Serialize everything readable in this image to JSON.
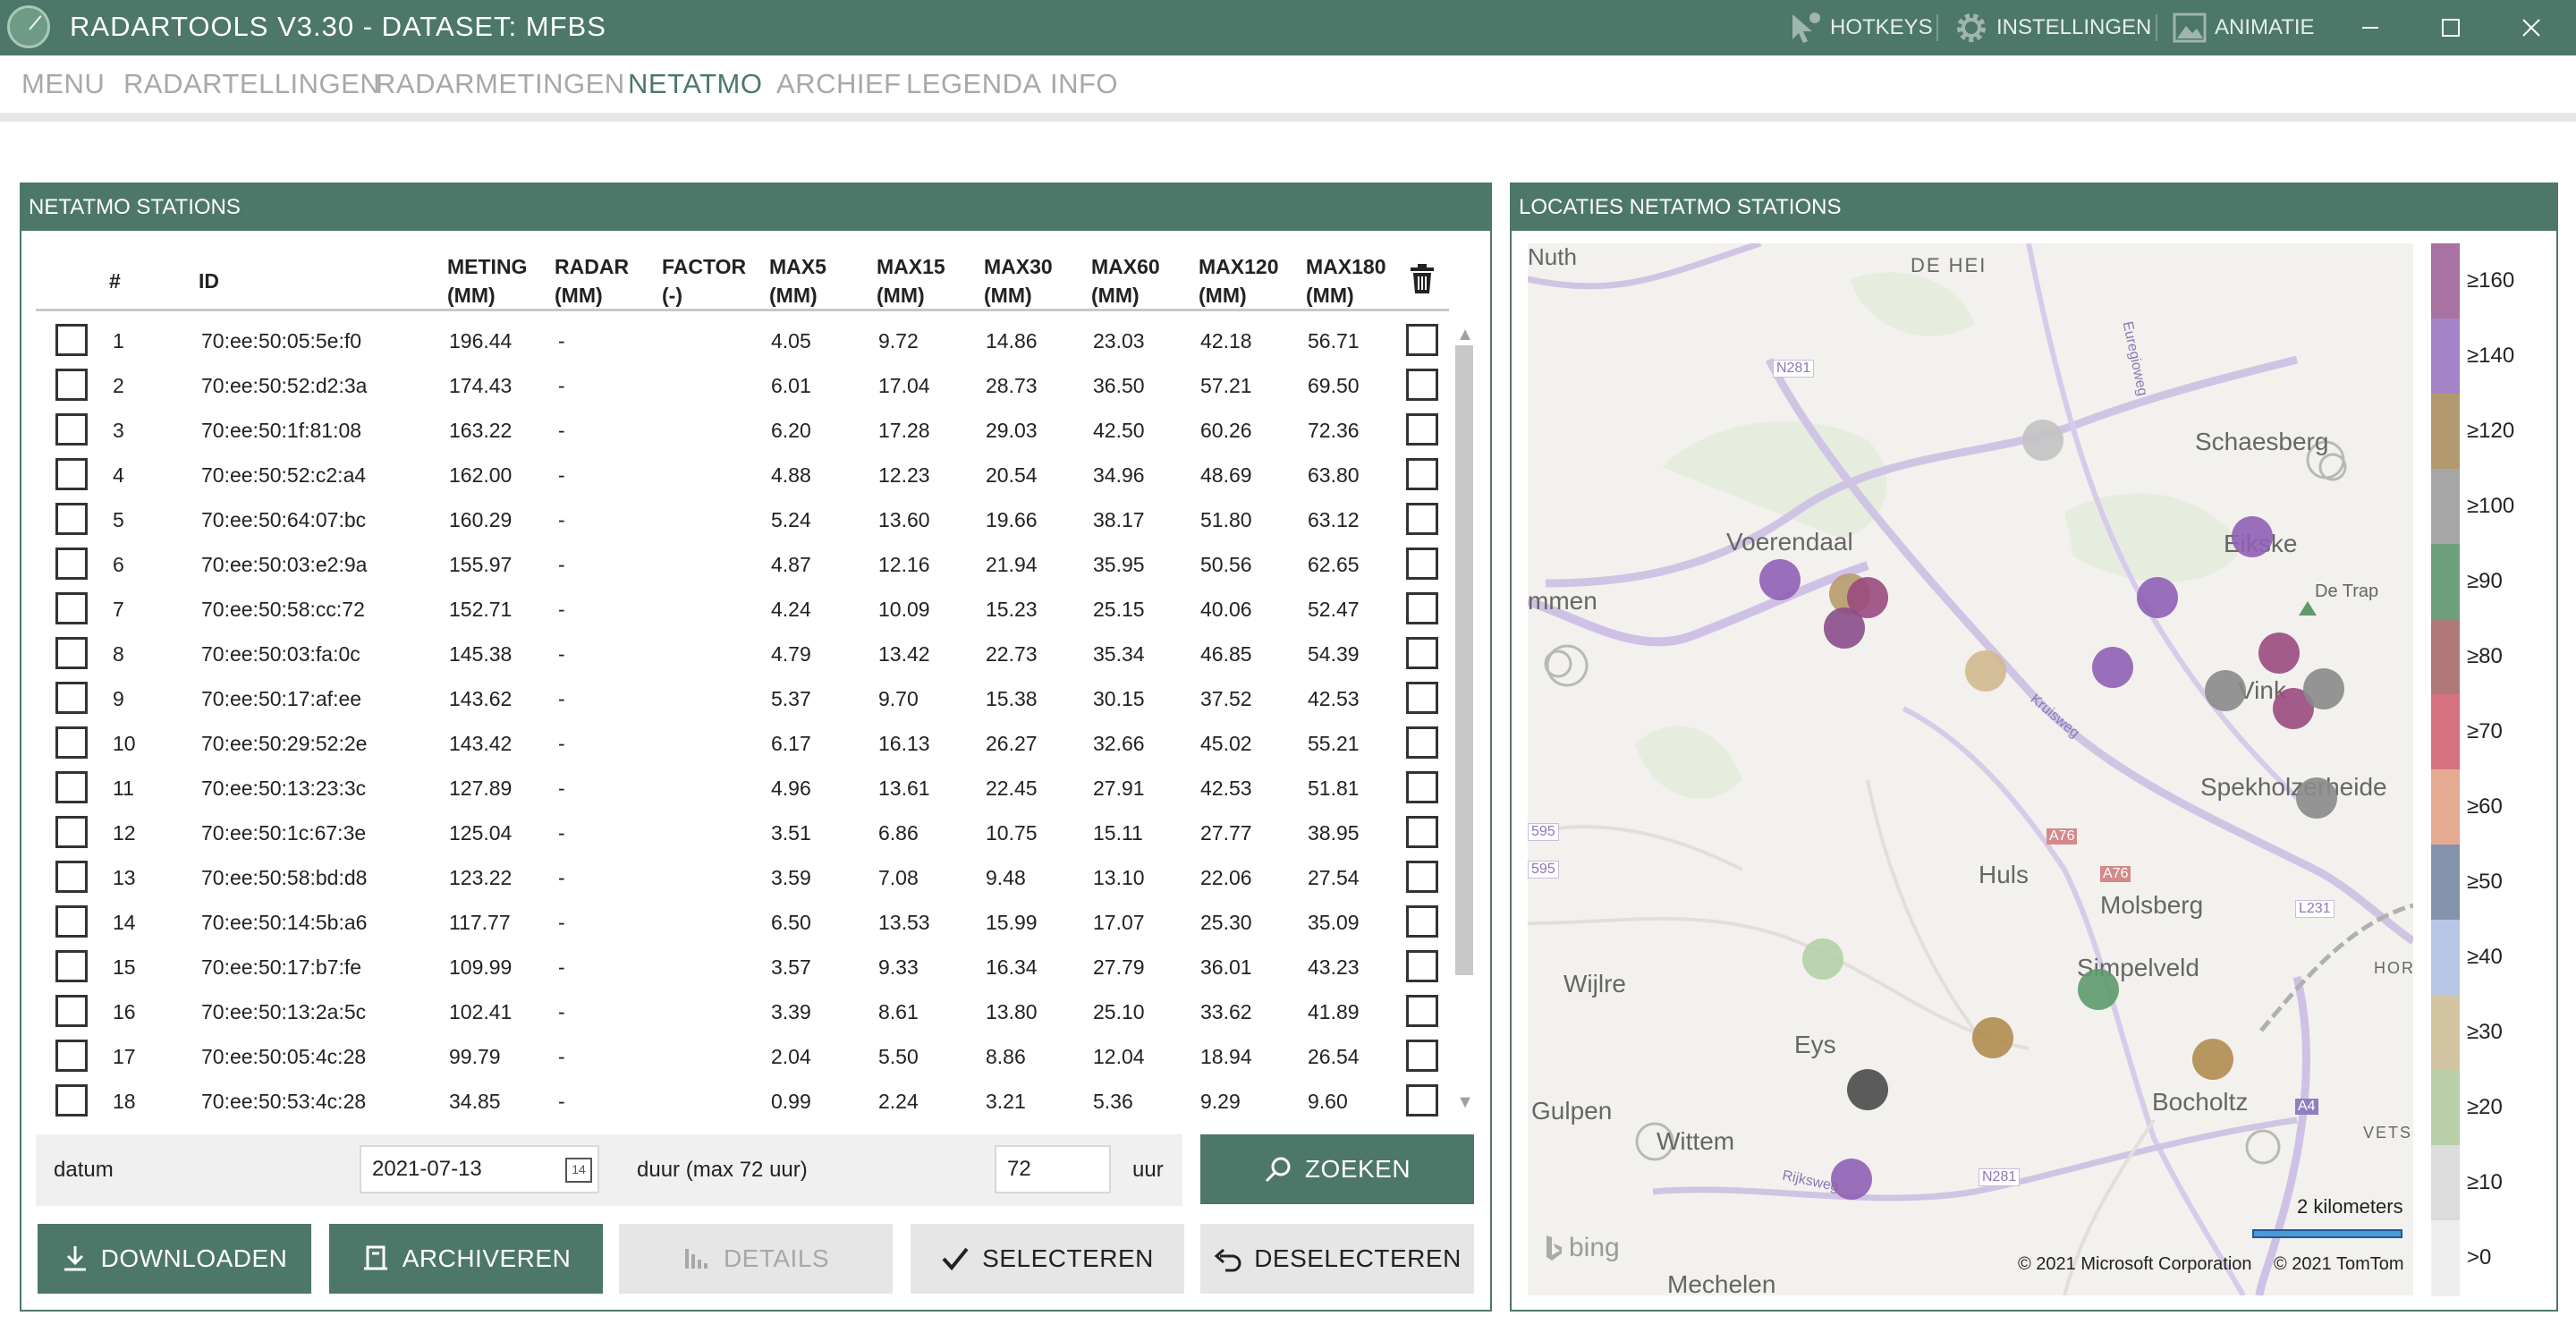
{
  "app": {
    "title": "RADARTOOLS V3.30 - DATASET: MFBS"
  },
  "titlebar": {
    "hotkeys": "HOTKEYS",
    "settings": "INSTELLINGEN",
    "animation": "ANIMATIE"
  },
  "menu": [
    "MENU",
    "RADARTELLINGEN",
    "RADARMETINGEN",
    "NETATMO",
    "ARCHIEF",
    "LEGENDA",
    "INFO"
  ],
  "menu_active": "NETATMO",
  "stations_panel": {
    "title": "NETATMO STATIONS",
    "columns": [
      "#",
      "ID",
      "METING\n(MM)",
      "RADAR\n(MM)",
      "FACTOR\n(-)",
      "MAX5\n(MM)",
      "MAX15\n(MM)",
      "MAX30\n(MM)",
      "MAX60\n(MM)",
      "MAX120\n(MM)",
      "MAX180\n(MM)"
    ],
    "rows": [
      [
        "1",
        "70:ee:50:05:5e:f0",
        "196.44",
        "-",
        "",
        "4.05",
        "9.72",
        "14.86",
        "23.03",
        "42.18",
        "56.71"
      ],
      [
        "2",
        "70:ee:50:52:d2:3a",
        "174.43",
        "-",
        "",
        "6.01",
        "17.04",
        "28.73",
        "36.50",
        "57.21",
        "69.50"
      ],
      [
        "3",
        "70:ee:50:1f:81:08",
        "163.22",
        "-",
        "",
        "6.20",
        "17.28",
        "29.03",
        "42.50",
        "60.26",
        "72.36"
      ],
      [
        "4",
        "70:ee:50:52:c2:a4",
        "162.00",
        "-",
        "",
        "4.88",
        "12.23",
        "20.54",
        "34.96",
        "48.69",
        "63.80"
      ],
      [
        "5",
        "70:ee:50:64:07:bc",
        "160.29",
        "-",
        "",
        "5.24",
        "13.60",
        "19.66",
        "38.17",
        "51.80",
        "63.12"
      ],
      [
        "6",
        "70:ee:50:03:e2:9a",
        "155.97",
        "-",
        "",
        "4.87",
        "12.16",
        "21.94",
        "35.95",
        "50.56",
        "62.65"
      ],
      [
        "7",
        "70:ee:50:58:cc:72",
        "152.71",
        "-",
        "",
        "4.24",
        "10.09",
        "15.23",
        "25.15",
        "40.06",
        "52.47"
      ],
      [
        "8",
        "70:ee:50:03:fa:0c",
        "145.38",
        "-",
        "",
        "4.79",
        "13.42",
        "22.73",
        "35.34",
        "46.85",
        "54.39"
      ],
      [
        "9",
        "70:ee:50:17:af:ee",
        "143.62",
        "-",
        "",
        "5.37",
        "9.70",
        "15.38",
        "30.15",
        "37.52",
        "42.53"
      ],
      [
        "10",
        "70:ee:50:29:52:2e",
        "143.42",
        "-",
        "",
        "6.17",
        "16.13",
        "26.27",
        "32.66",
        "45.02",
        "55.21"
      ],
      [
        "11",
        "70:ee:50:13:23:3c",
        "127.89",
        "-",
        "",
        "4.96",
        "13.61",
        "22.45",
        "27.91",
        "42.53",
        "51.81"
      ],
      [
        "12",
        "70:ee:50:1c:67:3e",
        "125.04",
        "-",
        "",
        "3.51",
        "6.86",
        "10.75",
        "15.11",
        "27.77",
        "38.95"
      ],
      [
        "13",
        "70:ee:50:58:bd:d8",
        "123.22",
        "-",
        "",
        "3.59",
        "7.08",
        "9.48",
        "13.10",
        "22.06",
        "27.54"
      ],
      [
        "14",
        "70:ee:50:14:5b:a6",
        "117.77",
        "-",
        "",
        "6.50",
        "13.53",
        "15.99",
        "17.07",
        "25.30",
        "35.09"
      ],
      [
        "15",
        "70:ee:50:17:b7:fe",
        "109.99",
        "-",
        "",
        "3.57",
        "9.33",
        "16.34",
        "27.79",
        "36.01",
        "43.23"
      ],
      [
        "16",
        "70:ee:50:13:2a:5c",
        "102.41",
        "-",
        "",
        "3.39",
        "8.61",
        "13.80",
        "25.10",
        "33.62",
        "41.89"
      ],
      [
        "17",
        "70:ee:50:05:4c:28",
        "99.79",
        "-",
        "",
        "2.04",
        "5.50",
        "8.86",
        "12.04",
        "18.94",
        "26.54"
      ],
      [
        "18",
        "70:ee:50:53:4c:28",
        "34.85",
        "-",
        "",
        "0.99",
        "2.24",
        "3.21",
        "5.36",
        "9.29",
        "9.60"
      ]
    ]
  },
  "controls": {
    "date_label": "datum",
    "date_value": "2021-07-13",
    "date_icon": "14",
    "duration_label": "duur (max 72 uur)",
    "duration_value": "72",
    "duration_unit": "uur",
    "search_button": "ZOEKEN",
    "download_button": "DOWNLOADEN",
    "archive_button": "ARCHIVEREN",
    "details_button": "DETAILS",
    "select_button": "SELECTEREN",
    "deselect_button": "DESELECTEREN"
  },
  "map_panel": {
    "title": "LOCATIES NETATMO STATIONS",
    "places": [
      "Nuth",
      "DE HEI",
      "Schaesberg",
      "Voerendaal",
      "Eikske",
      "De Trap",
      "mmen",
      "Vink",
      "Spekholzerheide",
      "Huls",
      "Molsberg",
      "Simpelveld",
      "Wijlre",
      "Eys",
      "HORB",
      "Gulpen",
      "Wittem",
      "Bocholtz",
      "VETSCH",
      "Mechelen"
    ],
    "roads": [
      "N281",
      "Euregioweg",
      "Kruisweg",
      "A76",
      "A76",
      "L231",
      "A4",
      "Rijksweg",
      "N281",
      "595",
      "595"
    ],
    "scale_label": "2 kilometers",
    "bing_logo": "bing",
    "copyright_ms": "© 2021 Microsoft Corporation",
    "copyright_tomtom": "© 2021 TomTom"
  },
  "legend": {
    "labels": [
      "≥160",
      "≥140",
      "≥120",
      "≥100",
      "≥90",
      "≥80",
      "≥70",
      "≥60",
      "≥50",
      "≥40",
      "≥30",
      "≥20",
      "≥10",
      ">0"
    ],
    "colors": [
      "#a872a3",
      "#a483c8",
      "#b39a6e",
      "#a6a6a6",
      "#6fa07d",
      "#b07878",
      "#d5727e",
      "#e5ab92",
      "#8493ab",
      "#b7c7e6",
      "#d3c4a2",
      "#b9cfa9",
      "#dcdcdc",
      "#eeeeee"
    ]
  },
  "stations_on_map": [
    {
      "color": "#8f5fb4"
    },
    {
      "color": "#b69a6a"
    },
    {
      "color": "#9a4a80"
    },
    {
      "color": "#8a4c8a"
    },
    {
      "color": "#c2c2c2"
    },
    {
      "color": "#8f5fb4"
    },
    {
      "color": "#8f5fb4"
    },
    {
      "color": "#8f5fb4"
    },
    {
      "color": "#d2b98e"
    },
    {
      "color": "#9a4a80"
    },
    {
      "color": "#9a4a80"
    },
    {
      "color": "#8a8a8a"
    },
    {
      "color": "#8a8a8a"
    },
    {
      "color": "#8a8a8a"
    },
    {
      "color": "#b5cfa6"
    },
    {
      "color": "#5e9a6b"
    },
    {
      "color": "#b08c50"
    },
    {
      "color": "#b08c50"
    },
    {
      "color": "#4a4a4a"
    },
    {
      "color": "#8f5fb4"
    }
  ]
}
